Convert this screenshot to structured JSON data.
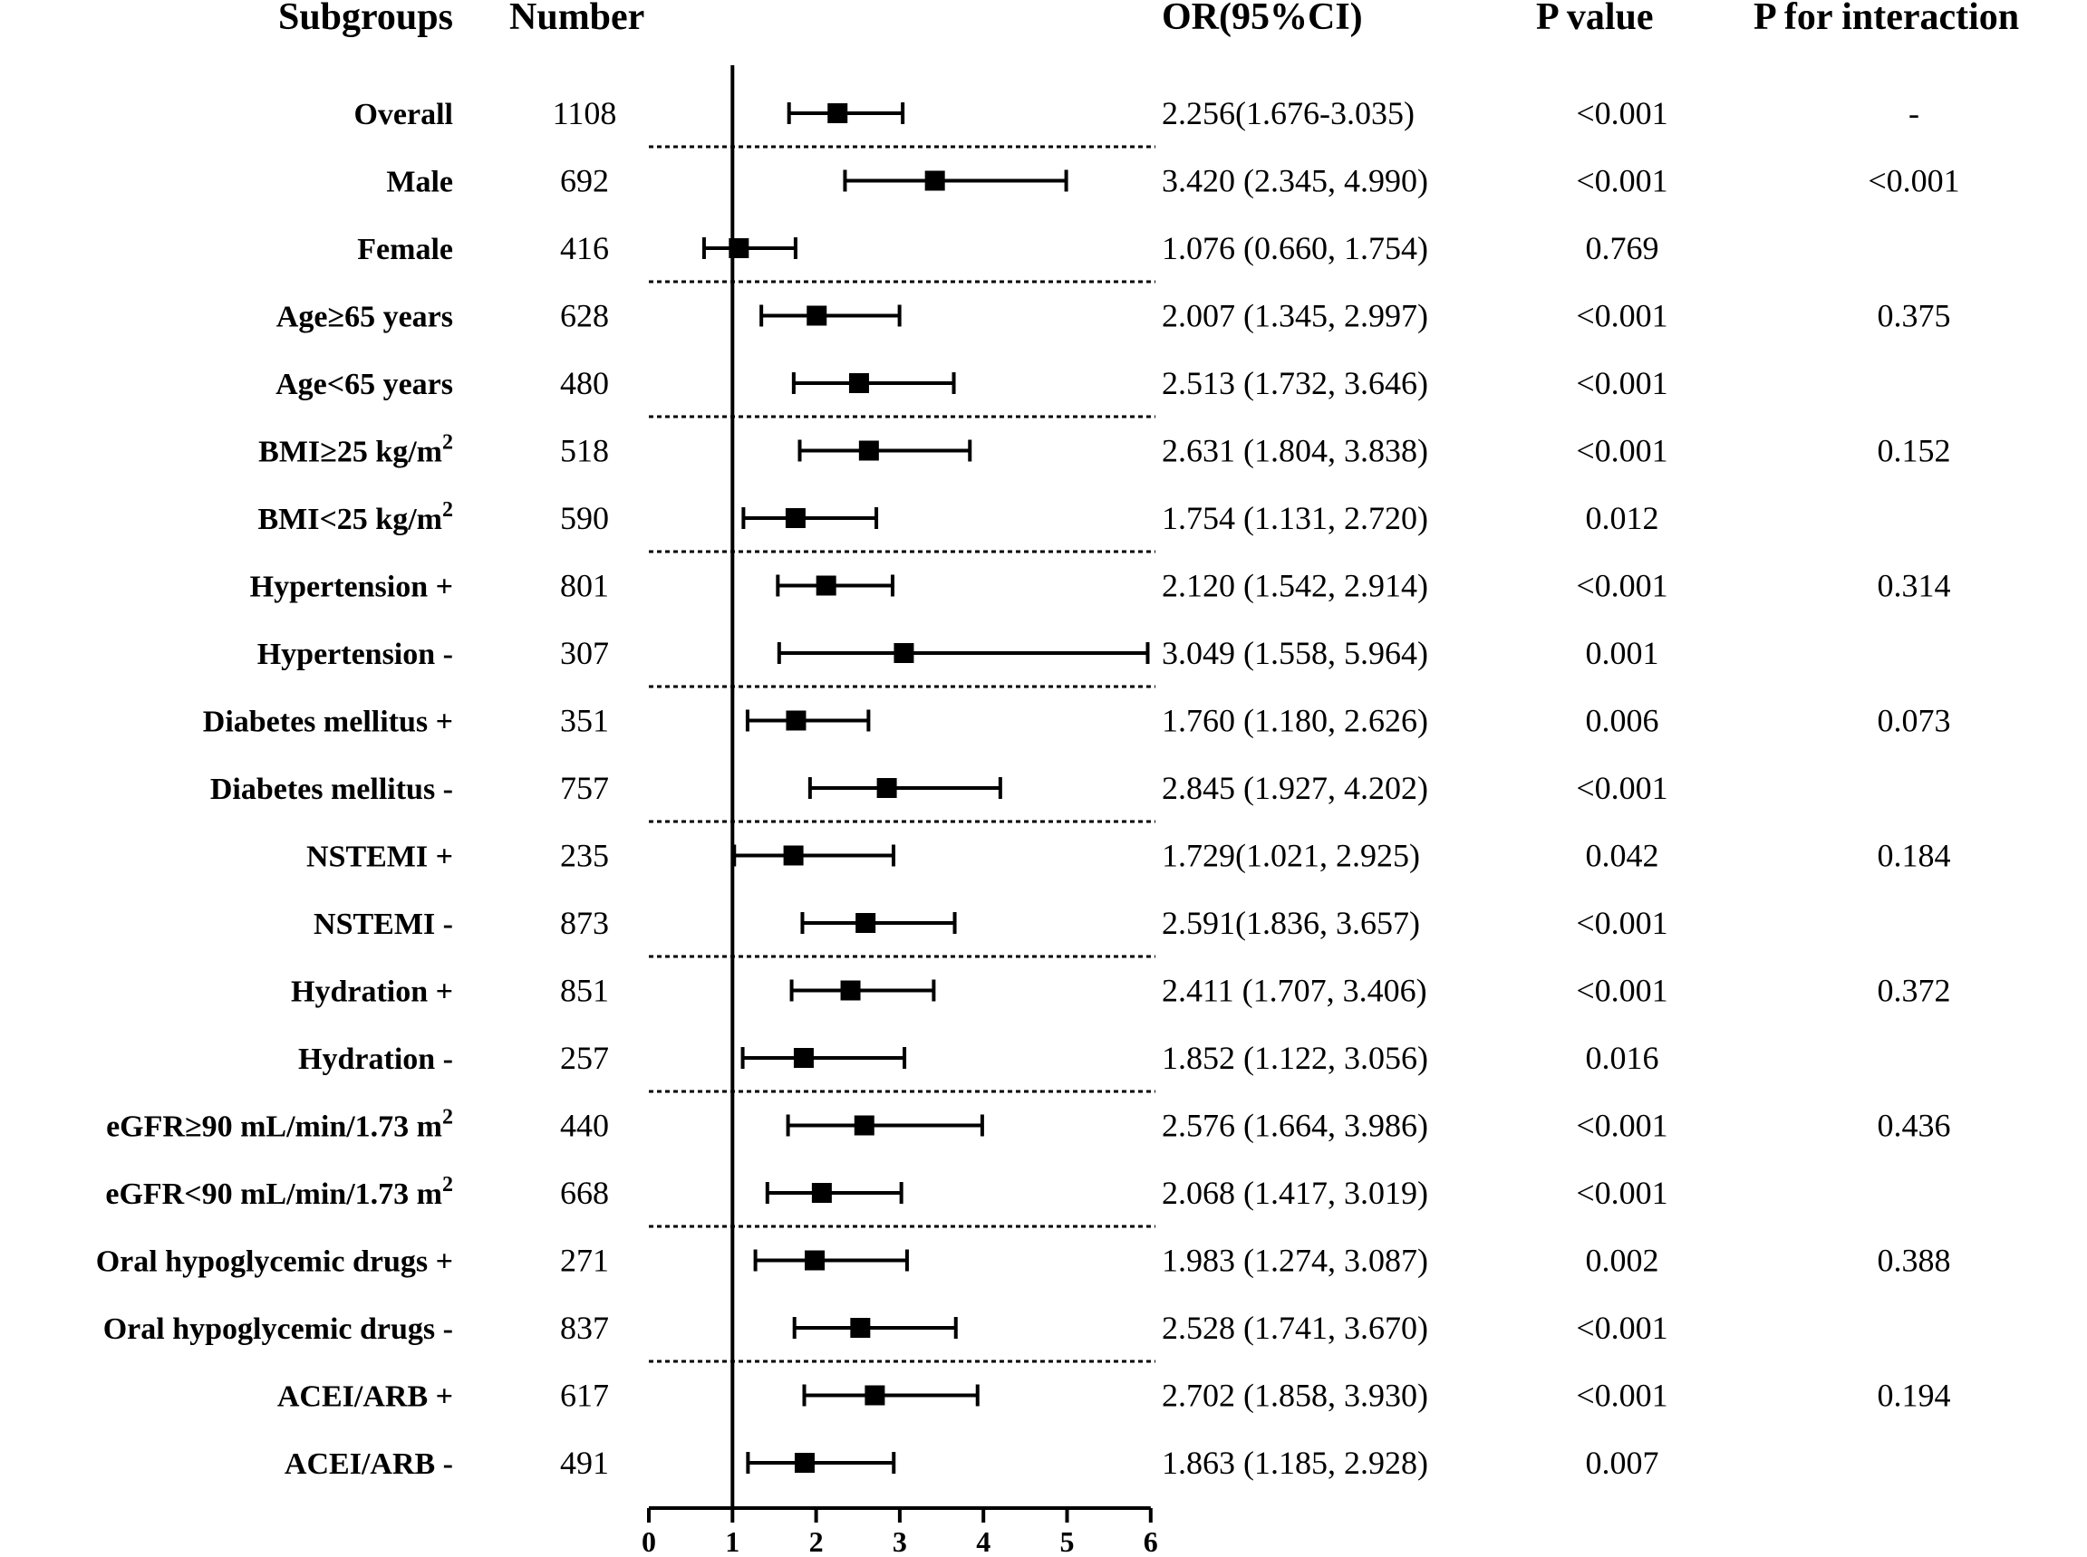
{
  "chart_data": {
    "type": "forest",
    "headers": {
      "subgroups": "Subgroups",
      "number": "Number",
      "or": "OR(95%CI)",
      "p": "P value",
      "pint": "P for interaction"
    },
    "xlim": [
      0,
      6
    ],
    "xticks": [
      "0",
      "1",
      "2",
      "3",
      "4",
      "5",
      "6"
    ],
    "reference_line": 1,
    "rows": [
      {
        "label": "Overall",
        "sup": "",
        "n": "1108",
        "or": 2.256,
        "lo": 1.676,
        "hi": 3.035,
        "or_text": "2.256(1.676-3.035)",
        "p": "<0.001",
        "pint": "-"
      },
      {
        "label": "Male",
        "sup": "",
        "n": "692",
        "or": 3.42,
        "lo": 2.345,
        "hi": 4.99,
        "or_text": "3.420 (2.345, 4.990)",
        "p": "<0.001",
        "pint": "<0.001"
      },
      {
        "label": "Female",
        "sup": "",
        "n": "416",
        "or": 1.076,
        "lo": 0.66,
        "hi": 1.754,
        "or_text": "1.076 (0.660, 1.754)",
        "p": "0.769",
        "pint": ""
      },
      {
        "label": "Age≥65 years",
        "sup": "",
        "n": "628",
        "or": 2.007,
        "lo": 1.345,
        "hi": 2.997,
        "or_text": "2.007 (1.345, 2.997)",
        "p": "<0.001",
        "pint": "0.375"
      },
      {
        "label": "Age<65 years",
        "sup": "",
        "n": "480",
        "or": 2.513,
        "lo": 1.732,
        "hi": 3.646,
        "or_text": "2.513 (1.732, 3.646)",
        "p": "<0.001",
        "pint": ""
      },
      {
        "label": "BMI≥25 kg/m",
        "sup": "2",
        "n": "518",
        "or": 2.631,
        "lo": 1.804,
        "hi": 3.838,
        "or_text": "2.631 (1.804, 3.838)",
        "p": "<0.001",
        "pint": "0.152"
      },
      {
        "label": "BMI<25 kg/m",
        "sup": "2",
        "n": "590",
        "or": 1.754,
        "lo": 1.131,
        "hi": 2.72,
        "or_text": "1.754 (1.131, 2.720)",
        "p": "0.012",
        "pint": ""
      },
      {
        "label": "Hypertension +",
        "sup": "",
        "n": "801",
        "or": 2.12,
        "lo": 1.542,
        "hi": 2.914,
        "or_text": "2.120 (1.542, 2.914)",
        "p": "<0.001",
        "pint": "0.314"
      },
      {
        "label": "Hypertension  -",
        "sup": "",
        "n": "307",
        "or": 3.049,
        "lo": 1.558,
        "hi": 5.964,
        "or_text": "3.049 (1.558, 5.964)",
        "p": "0.001",
        "pint": ""
      },
      {
        "label": "Diabetes mellitus +",
        "sup": "",
        "n": "351",
        "or": 1.76,
        "lo": 1.18,
        "hi": 2.626,
        "or_text": "1.760 (1.180, 2.626)",
        "p": "0.006",
        "pint": "0.073"
      },
      {
        "label": "Diabetes mellitus  -",
        "sup": "",
        "n": "757",
        "or": 2.845,
        "lo": 1.927,
        "hi": 4.202,
        "or_text": "2.845 (1.927, 4.202)",
        "p": "<0.001",
        "pint": ""
      },
      {
        "label": "NSTEMI +",
        "sup": "",
        "n": "235",
        "or": 1.729,
        "lo": 1.021,
        "hi": 2.925,
        "or_text": "1.729(1.021, 2.925)",
        "p": "0.042",
        "pint": "0.184"
      },
      {
        "label": "NSTEMI  -",
        "sup": "",
        "n": "873",
        "or": 2.591,
        "lo": 1.836,
        "hi": 3.657,
        "or_text": "2.591(1.836, 3.657)",
        "p": "<0.001",
        "pint": ""
      },
      {
        "label": "Hydration +",
        "sup": "",
        "n": "851",
        "or": 2.411,
        "lo": 1.707,
        "hi": 3.406,
        "or_text": "2.411 (1.707, 3.406)",
        "p": "<0.001",
        "pint": "0.372"
      },
      {
        "label": "Hydration  -",
        "sup": "",
        "n": "257",
        "or": 1.852,
        "lo": 1.122,
        "hi": 3.056,
        "or_text": "1.852 (1.122, 3.056)",
        "p": "0.016",
        "pint": ""
      },
      {
        "label": "eGFR≥90 mL/min/1.73 m",
        "sup": "2",
        "n": "440",
        "or": 2.576,
        "lo": 1.664,
        "hi": 3.986,
        "or_text": "2.576 (1.664, 3.986)",
        "p": "<0.001",
        "pint": "0.436"
      },
      {
        "label": "eGFR<90 mL/min/1.73 m",
        "sup": "2",
        "n": "668",
        "or": 2.068,
        "lo": 1.417,
        "hi": 3.019,
        "or_text": "2.068 (1.417, 3.019)",
        "p": "<0.001",
        "pint": ""
      },
      {
        "label": "Oral hypoglycemic drugs +",
        "sup": "",
        "n": "271",
        "or": 1.983,
        "lo": 1.274,
        "hi": 3.087,
        "or_text": "1.983 (1.274, 3.087)",
        "p": "0.002",
        "pint": "0.388"
      },
      {
        "label": "Oral hypoglycemic drugs  -",
        "sup": "",
        "n": "837",
        "or": 2.528,
        "lo": 1.741,
        "hi": 3.67,
        "or_text": "2.528 (1.741, 3.670)",
        "p": "<0.001",
        "pint": ""
      },
      {
        "label": "ACEI/ARB +",
        "sup": "",
        "n": "617",
        "or": 2.702,
        "lo": 1.858,
        "hi": 3.93,
        "or_text": "2.702 (1.858, 3.930)",
        "p": "<0.001",
        "pint": "0.194"
      },
      {
        "label": "ACEI/ARB  -",
        "sup": "",
        "n": "491",
        "or": 1.863,
        "lo": 1.185,
        "hi": 2.928,
        "or_text": "1.863 (1.185, 2.928)",
        "p": "0.007",
        "pint": ""
      }
    ],
    "separators_after": [
      "Overall",
      "Female",
      "Age<65 years",
      "BMI<25 kg/m",
      "Hypertension  -",
      "Diabetes mellitus  -",
      "NSTEMI  -",
      "Hydration  -",
      "eGFR<90 mL/min/1.73 m",
      "Oral hypoglycemic drugs  -"
    ]
  }
}
